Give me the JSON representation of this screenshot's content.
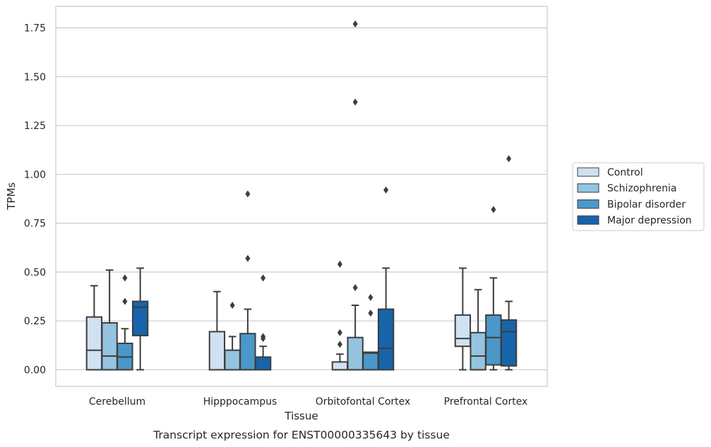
{
  "chart_data": {
    "type": "box",
    "title": "",
    "caption": "Transcript expression for ENST00000335643 by tissue",
    "xlabel": "Tissue",
    "ylabel": "TPMs",
    "ylim": [
      -0.085,
      1.86
    ],
    "yticks": [
      0.0,
      0.25,
      0.5,
      0.75,
      1.0,
      1.25,
      1.5,
      1.75
    ],
    "ytick_labels": [
      "0.00",
      "0.25",
      "0.50",
      "0.75",
      "1.00",
      "1.25",
      "1.50",
      "1.75"
    ],
    "grid": true,
    "legend_position": "right",
    "categories": [
      "Cerebellum",
      "Hipppocampus",
      "Orbitofontal Cortex",
      "Prefrontal Cortex"
    ],
    "series": [
      {
        "name": "Control",
        "color": "#d0e1f2",
        "boxes": [
          {
            "whislo": 0.0,
            "q1": 0.0,
            "med": 0.1,
            "q3": 0.27,
            "whishi": 0.43,
            "fliers": []
          },
          {
            "whislo": 0.0,
            "q1": 0.0,
            "med": 0.0,
            "q3": 0.195,
            "whishi": 0.4,
            "fliers": []
          },
          {
            "whislo": 0.0,
            "q1": 0.0,
            "med": 0.0,
            "q3": 0.04,
            "whishi": 0.08,
            "fliers": [
              0.13,
              0.19,
              0.54
            ]
          },
          {
            "whislo": 0.0,
            "q1": 0.12,
            "med": 0.16,
            "q3": 0.28,
            "whishi": 0.52,
            "fliers": []
          }
        ]
      },
      {
        "name": "Schizophrenia",
        "color": "#94c4df",
        "boxes": [
          {
            "whislo": 0.0,
            "q1": 0.0,
            "med": 0.07,
            "q3": 0.24,
            "whishi": 0.51,
            "fliers": []
          },
          {
            "whislo": 0.0,
            "q1": 0.0,
            "med": 0.0,
            "q3": 0.1,
            "whishi": 0.17,
            "fliers": [
              0.33
            ]
          },
          {
            "whislo": 0.0,
            "q1": 0.0,
            "med": 0.0,
            "q3": 0.165,
            "whishi": 0.33,
            "fliers": [
              0.42,
              1.37,
              1.77
            ]
          },
          {
            "whislo": 0.0,
            "q1": 0.0,
            "med": 0.07,
            "q3": 0.19,
            "whishi": 0.41,
            "fliers": []
          }
        ]
      },
      {
        "name": "Bipolar disorder",
        "color": "#4a98c9",
        "boxes": [
          {
            "whislo": 0.0,
            "q1": 0.0,
            "med": 0.065,
            "q3": 0.135,
            "whishi": 0.21,
            "fliers": [
              0.35,
              0.47
            ]
          },
          {
            "whislo": 0.0,
            "q1": 0.0,
            "med": 0.0,
            "q3": 0.185,
            "whishi": 0.31,
            "fliers": [
              0.57,
              0.9
            ]
          },
          {
            "whislo": 0.0,
            "q1": 0.0,
            "med": 0.085,
            "q3": 0.09,
            "whishi": 0.09,
            "fliers": [
              0.29,
              0.37
            ]
          },
          {
            "whislo": 0.0,
            "q1": 0.025,
            "med": 0.165,
            "q3": 0.28,
            "whishi": 0.47,
            "fliers": [
              0.82
            ]
          }
        ]
      },
      {
        "name": "Major depression",
        "color": "#1764ab",
        "boxes": [
          {
            "whislo": 0.0,
            "q1": 0.175,
            "med": 0.32,
            "q3": 0.35,
            "whishi": 0.52,
            "fliers": []
          },
          {
            "whislo": 0.0,
            "q1": 0.0,
            "med": 0.0,
            "q3": 0.065,
            "whishi": 0.12,
            "fliers": [
              0.16,
              0.17,
              0.47
            ]
          },
          {
            "whislo": 0.0,
            "q1": 0.0,
            "med": 0.11,
            "q3": 0.31,
            "whishi": 0.52,
            "fliers": [
              0.92
            ]
          },
          {
            "whislo": 0.0,
            "q1": 0.02,
            "med": 0.195,
            "q3": 0.255,
            "whishi": 0.35,
            "fliers": [
              1.08
            ]
          }
        ]
      }
    ]
  }
}
